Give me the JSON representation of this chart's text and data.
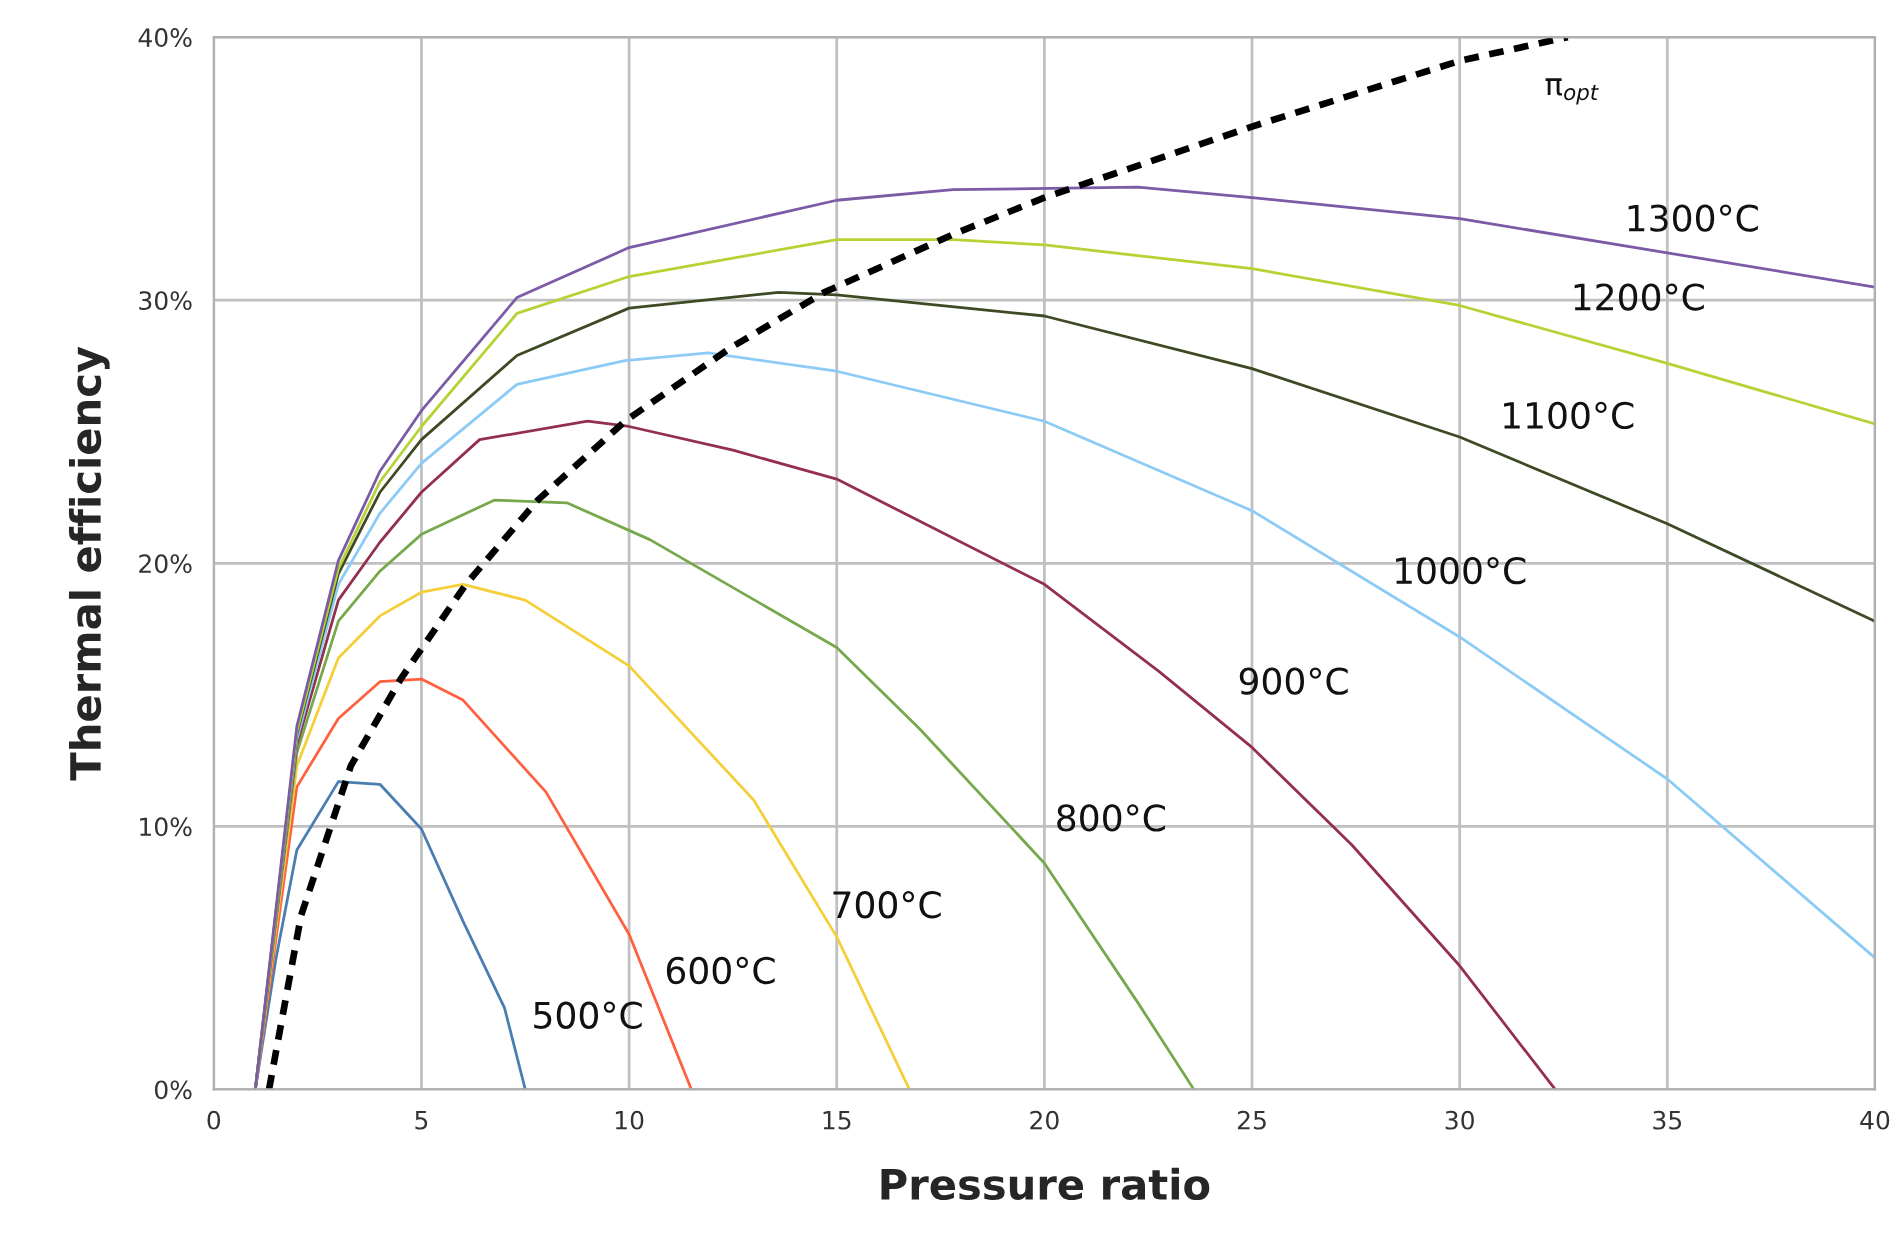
{
  "chart_data": {
    "type": "line",
    "xlabel": "Pressure ratio",
    "ylabel": "Thermal efficiency",
    "xlim": [
      0,
      40
    ],
    "xticks": [
      0,
      5,
      10,
      15,
      20,
      25,
      30,
      35,
      40
    ],
    "ylim": [
      0,
      40
    ],
    "yticks": [
      {
        "value": 0,
        "label": "0%"
      },
      {
        "value": 10,
        "label": "10%"
      },
      {
        "value": 20,
        "label": "20%"
      },
      {
        "value": 30,
        "label": "30%"
      },
      {
        "value": 40,
        "label": "40%"
      }
    ],
    "grid": true,
    "legend": false,
    "marker": "none",
    "series": [
      {
        "name": "500°C",
        "color": "#4a7eb0",
        "x": [
          1.0,
          1.5,
          2,
          3,
          4,
          5,
          6,
          7,
          7.5
        ],
        "values": [
          0,
          5,
          9.1,
          11.7,
          11.6,
          9.9,
          6.4,
          3.1,
          0
        ]
      },
      {
        "name": "600°C",
        "color": "#ff6040",
        "x": [
          1.0,
          2,
          3,
          4,
          5,
          6,
          8,
          10,
          11.5
        ],
        "values": [
          0,
          11.5,
          14.1,
          15.5,
          15.6,
          14.8,
          11.3,
          5.9,
          0
        ]
      },
      {
        "name": "700°C",
        "color": "#f5cf3a",
        "x": [
          1.0,
          2,
          3,
          4,
          5,
          6,
          7.5,
          10,
          13,
          15,
          16.75
        ],
        "values": [
          0,
          12.3,
          16.4,
          18.0,
          18.9,
          19.2,
          18.6,
          16.1,
          11,
          5.8,
          0
        ]
      },
      {
        "name": "800°C",
        "color": "#76a84c",
        "x": [
          1.0,
          2,
          3,
          4,
          5,
          6.75,
          8.5,
          10.5,
          15,
          17,
          20,
          22.25,
          23.6
        ],
        "values": [
          0,
          12.8,
          17.8,
          19.7,
          21.1,
          22.4,
          22.3,
          20.9,
          16.8,
          13.7,
          8.6,
          3.3,
          0
        ]
      },
      {
        "name": "900°C",
        "color": "#94304f",
        "x": [
          1.0,
          2,
          3,
          4,
          5,
          6.4,
          9,
          10,
          12.5,
          15,
          20,
          22.75,
          25,
          27.4,
          30,
          32.3
        ],
        "values": [
          0,
          13.1,
          18.6,
          20.8,
          22.7,
          24.7,
          25.4,
          25.2,
          24.3,
          23.2,
          19.2,
          15.9,
          13.0,
          9.3,
          4.7,
          0
        ]
      },
      {
        "name": "1000°C",
        "color": "#8ccbf5",
        "x": [
          1.0,
          2,
          3,
          4,
          5,
          7.3,
          9.9,
          11.9,
          15,
          20,
          25,
          30,
          35,
          40
        ],
        "values": [
          0,
          13.3,
          19.2,
          21.9,
          23.8,
          26.8,
          27.7,
          28.0,
          27.3,
          25.4,
          22.0,
          17.2,
          11.8,
          5.0
        ]
      },
      {
        "name": "1100°C",
        "color": "#3e4a24",
        "x": [
          1.0,
          2,
          3,
          4,
          5,
          7.3,
          10,
          13.6,
          15,
          20,
          25,
          30,
          35,
          40
        ],
        "values": [
          0,
          13.5,
          19.6,
          22.7,
          24.7,
          27.9,
          29.7,
          30.3,
          30.2,
          29.4,
          27.4,
          24.8,
          21.5,
          17.8
        ]
      },
      {
        "name": "1200°C",
        "color": "#b5d334",
        "x": [
          1.0,
          2,
          3,
          4,
          5,
          7.3,
          10,
          15,
          17.8,
          20,
          25,
          30,
          35,
          40
        ],
        "values": [
          0,
          13.6,
          19.8,
          23.1,
          25.2,
          29.5,
          30.9,
          32.3,
          32.3,
          32.1,
          31.2,
          29.8,
          27.6,
          25.3
        ]
      },
      {
        "name": "1300°C",
        "color": "#7b5aa6",
        "x": [
          1.0,
          2,
          3,
          4,
          5,
          7.3,
          10,
          15,
          17.8,
          22.25,
          25,
          30,
          35,
          40
        ],
        "values": [
          0,
          13.8,
          20.1,
          23.5,
          25.8,
          30.1,
          32.0,
          33.8,
          34.2,
          34.3,
          33.9,
          33.1,
          31.8,
          30.5
        ]
      },
      {
        "name": "π$_{opt}$",
        "color": "#000000",
        "line_style": "dashed",
        "x": [
          1.33,
          2.1,
          3.3,
          4.5,
          6.07,
          7.8,
          9.9,
          12.45,
          14.7,
          17.8,
          20,
          25,
          30,
          32.6
        ],
        "values": [
          0,
          6.6,
          12.3,
          15.6,
          19.2,
          22.4,
          25.4,
          28.2,
          30.3,
          32.5,
          33.9,
          36.6,
          39.1,
          40
        ]
      }
    ]
  }
}
